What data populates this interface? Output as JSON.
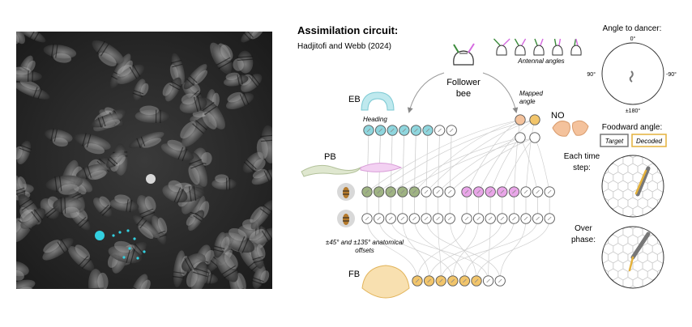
{
  "title": "Assimilation circuit:",
  "citation": "Hadjitofi and Webb (2024)",
  "follower_label": "Follower bee",
  "antennal_angles_label": "Antennal angles",
  "mapped_angle_label": "Mapped angle",
  "heading_label": "Heading",
  "regions": {
    "eb": "EB",
    "pb": "PB",
    "fb": "FB",
    "no": "NO"
  },
  "offsets_label": "±45° and ±135° anatomical offsets",
  "angle_panel": {
    "title": "Angle to dancer:",
    "top": "0°",
    "left": "90°",
    "right": "-90°",
    "bottom": "±180°"
  },
  "foodward": {
    "title": "Foodward angle:",
    "target": "Target",
    "decoded": "Decoded",
    "each_step": "Each time step:",
    "over_phase": "Over phase:"
  },
  "colors": {
    "eb": "#8fd6de",
    "pb_green": "#9fb383",
    "pb_pink": "#e9a6e8",
    "fb": "#f2c56b",
    "no": "#f4c29c",
    "target": "#777777",
    "decoded": "#e4b13b",
    "tracker": "#33d0e0"
  }
}
